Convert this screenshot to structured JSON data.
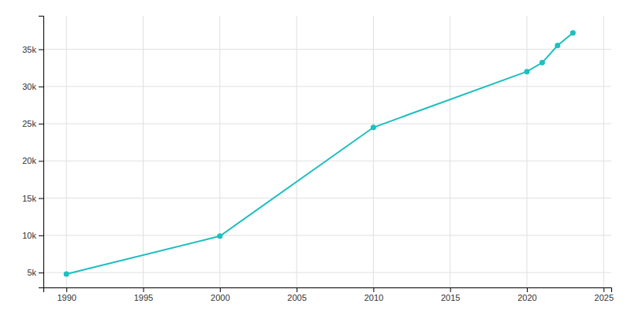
{
  "chart_data": {
    "type": "line",
    "x": [
      1990,
      2000,
      2010,
      2020,
      2021,
      2022,
      2023
    ],
    "values": [
      4800,
      9900,
      24500,
      32000,
      33200,
      35500,
      37200
    ],
    "color": "#1dbfbf",
    "marker": "circle",
    "xlim": [
      1988.5,
      2025.5
    ],
    "ylim": [
      3000,
      39500
    ],
    "xticks": [
      1990,
      1995,
      2000,
      2005,
      2010,
      2015,
      2020,
      2025
    ],
    "yticks": [
      {
        "value": 5000,
        "label": "5k"
      },
      {
        "value": 10000,
        "label": "10k"
      },
      {
        "value": 15000,
        "label": "15k"
      },
      {
        "value": 20000,
        "label": "20k"
      },
      {
        "value": 25000,
        "label": "25k"
      },
      {
        "value": 30000,
        "label": "30k"
      },
      {
        "value": 35000,
        "label": "35k"
      }
    ],
    "grid": true
  }
}
